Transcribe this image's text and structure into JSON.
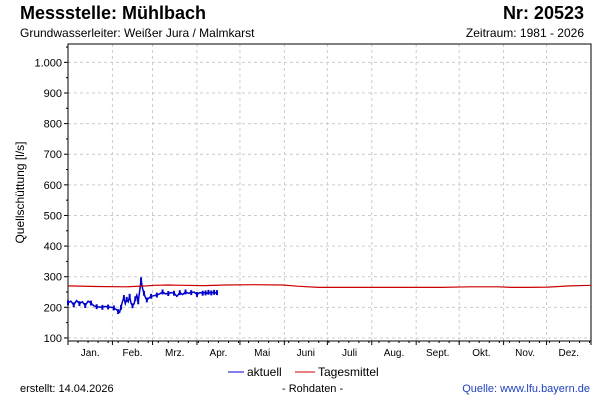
{
  "header": {
    "title": "Messstelle: Mühlbach",
    "number": "Nr: 20523",
    "aquifer": "Grundwasserleiter: Weißer Jura / Malmkarst",
    "period": "Zeitraum: 1981 - 2026"
  },
  "footer": {
    "created": "erstellt:  14.04.2026",
    "rawdata": "- Rohdaten -",
    "source": "Quelle: www.lfu.bayern.de"
  },
  "colors": {
    "current": "#0000cc",
    "daily_mean": "#cc0000",
    "grid": "#cccccc",
    "axis": "#000000"
  },
  "chart_data": {
    "type": "line",
    "title": "",
    "xlabel": "",
    "ylabel": "Quellschüttung [l/s]",
    "ylim": [
      90,
      1060
    ],
    "xlim": [
      0,
      365
    ],
    "y_ticks": [
      100,
      200,
      300,
      400,
      500,
      600,
      700,
      800,
      900,
      1000
    ],
    "y_tick_labels": [
      "100",
      "200",
      "300",
      "400",
      "500",
      "600",
      "700",
      "800",
      "900",
      "1.000"
    ],
    "month_labels": [
      "Jan.",
      "Feb.",
      "Mrz.",
      "Apr.",
      "Mai",
      "Juni",
      "Juli",
      "Aug.",
      "Sept.",
      "Okt.",
      "Nov.",
      "Dez."
    ],
    "month_starts": [
      0,
      31,
      59,
      90,
      120,
      151,
      181,
      212,
      243,
      273,
      304,
      334,
      365
    ],
    "grid": true,
    "legend_position": "bottom-center",
    "series": [
      {
        "name": "aktuell",
        "color": "#0000cc",
        "x": [
          0,
          2,
          4,
          6,
          8,
          10,
          12,
          14,
          16,
          18,
          20,
          22,
          24,
          26,
          28,
          30,
          32,
          34,
          35,
          36,
          37,
          38,
          39,
          40,
          41,
          42,
          43,
          44,
          45,
          46,
          47,
          48,
          49,
          50,
          51,
          52,
          53,
          54,
          55,
          56,
          58,
          60,
          62,
          64,
          66,
          68,
          70,
          72,
          74,
          76,
          78,
          80,
          82,
          84,
          86,
          88,
          90,
          92,
          94,
          95,
          96,
          97,
          98,
          99,
          100,
          101,
          102,
          103,
          104
        ],
        "y": [
          215,
          220,
          208,
          222,
          212,
          218,
          206,
          220,
          214,
          205,
          202,
          201,
          200,
          203,
          201,
          200,
          198,
          192,
          186,
          184,
          200,
          218,
          232,
          212,
          226,
          218,
          236,
          214,
          205,
          210,
          228,
          240,
          218,
          252,
          290,
          262,
          246,
          232,
          224,
          228,
          236,
          238,
          240,
          244,
          250,
          244,
          245,
          248,
          246,
          236,
          248,
          242,
          250,
          246,
          248,
          250,
          242,
          248,
          246,
          248,
          247,
          246,
          249,
          248,
          247,
          248,
          249,
          247,
          248
        ]
      },
      {
        "name": "Tagesmittel",
        "color": "#cc0000",
        "x": [
          0,
          20,
          40,
          55,
          60,
          70,
          80,
          95,
          110,
          130,
          150,
          160,
          175,
          200,
          230,
          260,
          280,
          300,
          310,
          320,
          335,
          350,
          365
        ],
        "y": [
          270,
          268,
          267,
          270,
          272,
          273,
          272,
          271,
          273,
          274,
          273,
          269,
          265,
          265,
          265,
          265,
          267,
          267,
          265,
          265,
          266,
          270,
          272
        ]
      }
    ]
  }
}
